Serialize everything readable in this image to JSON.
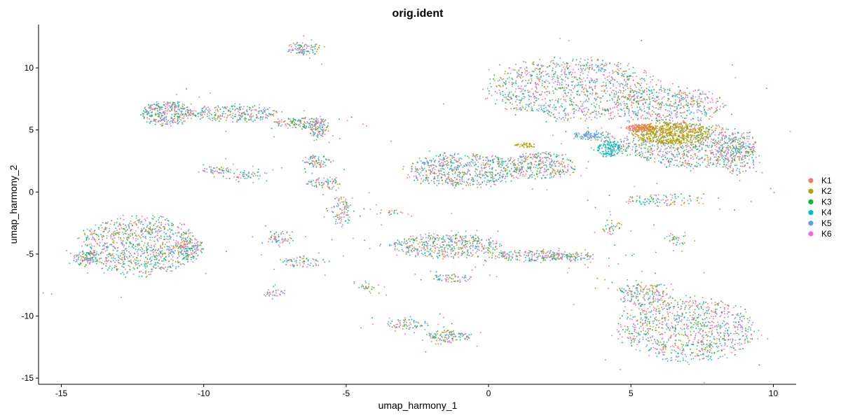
{
  "chart_data": {
    "type": "scatter",
    "title": "orig.ident",
    "xlabel": "umap_harmony_1",
    "ylabel": "umap_harmony_2",
    "xlim": [
      -15.8,
      10.8
    ],
    "ylim": [
      -15.5,
      13.5
    ],
    "x_ticks": [
      -15,
      -10,
      -5,
      0,
      5,
      10
    ],
    "y_ticks": [
      -15,
      -10,
      -5,
      0,
      5,
      10
    ],
    "x_tick_labels": [
      "-15",
      "-10",
      "-5",
      "0",
      "5",
      "10"
    ],
    "y_tick_labels": [
      "-15",
      "-10",
      "-5",
      "0",
      "5",
      "10"
    ],
    "grid": false,
    "legend_position": "right",
    "series": [
      {
        "name": "K1",
        "color": "#F8766D"
      },
      {
        "name": "K2",
        "color": "#B79F00"
      },
      {
        "name": "K3",
        "color": "#00BA38"
      },
      {
        "name": "K4",
        "color": "#00BFC4"
      },
      {
        "name": "K5",
        "color": "#619CFF"
      },
      {
        "name": "K6",
        "color": "#F564E3"
      }
    ],
    "clusters": [
      {
        "cx": -12.3,
        "cy": -4.3,
        "rx": 2.1,
        "ry": 2.4,
        "density": 900
      },
      {
        "cx": -14.2,
        "cy": -5.3,
        "rx": 0.45,
        "ry": 0.6,
        "density": 90
      },
      {
        "cx": -10.5,
        "cy": -4.6,
        "rx": 0.5,
        "ry": 0.9,
        "density": 110
      },
      {
        "cx": -11.3,
        "cy": 6.4,
        "rx": 0.9,
        "ry": 1.0,
        "density": 320
      },
      {
        "cx": -9.0,
        "cy": 6.4,
        "rx": 1.5,
        "ry": 0.7,
        "density": 240
      },
      {
        "cx": -6.6,
        "cy": 5.6,
        "rx": 1.0,
        "ry": 0.45,
        "density": 140
      },
      {
        "cx": -6.0,
        "cy": 5.1,
        "rx": 0.35,
        "ry": 0.7,
        "density": 80
      },
      {
        "cx": -6.5,
        "cy": 11.6,
        "rx": 0.6,
        "ry": 0.55,
        "density": 90
      },
      {
        "cx": -9.5,
        "cy": 1.8,
        "rx": 0.6,
        "ry": 0.3,
        "density": 40
      },
      {
        "cx": -8.5,
        "cy": 1.4,
        "rx": 0.5,
        "ry": 0.3,
        "density": 30
      },
      {
        "cx": -6.0,
        "cy": 2.5,
        "rx": 0.5,
        "ry": 0.5,
        "density": 60
      },
      {
        "cx": -5.8,
        "cy": 0.8,
        "rx": 0.6,
        "ry": 0.5,
        "density": 60
      },
      {
        "cx": -5.2,
        "cy": -1.5,
        "rx": 0.35,
        "ry": 1.2,
        "density": 80
      },
      {
        "cx": -7.3,
        "cy": -3.6,
        "rx": 0.4,
        "ry": 0.5,
        "density": 40
      },
      {
        "cx": -6.6,
        "cy": -5.6,
        "rx": 0.8,
        "ry": 0.45,
        "density": 60
      },
      {
        "cx": -7.5,
        "cy": -8.1,
        "rx": 0.4,
        "ry": 0.3,
        "density": 25
      },
      {
        "cx": -1.5,
        "cy": -4.3,
        "rx": 1.9,
        "ry": 1.0,
        "density": 450
      },
      {
        "cx": 1.5,
        "cy": -5.1,
        "rx": 1.4,
        "ry": 0.45,
        "density": 180
      },
      {
        "cx": 2.8,
        "cy": -5.2,
        "rx": 0.9,
        "ry": 0.35,
        "density": 80
      },
      {
        "cx": -1.3,
        "cy": -6.9,
        "rx": 0.7,
        "ry": 0.35,
        "density": 50
      },
      {
        "cx": -1.4,
        "cy": -11.6,
        "rx": 0.8,
        "ry": 0.5,
        "density": 110
      },
      {
        "cx": -2.9,
        "cy": -10.6,
        "rx": 0.8,
        "ry": 0.4,
        "density": 60
      },
      {
        "cx": -4.3,
        "cy": -7.6,
        "rx": 0.3,
        "ry": 0.2,
        "density": 15
      },
      {
        "cx": -3.5,
        "cy": -1.6,
        "rx": 0.5,
        "ry": 0.25,
        "density": 15
      },
      {
        "cx": -0.9,
        "cy": 1.8,
        "rx": 2.1,
        "ry": 1.4,
        "density": 600
      },
      {
        "cx": 1.9,
        "cy": 2.2,
        "rx": 1.2,
        "ry": 1.1,
        "density": 300
      },
      {
        "cx": 3.0,
        "cy": 8.3,
        "rx": 3.0,
        "ry": 2.5,
        "density": 1000
      },
      {
        "cx": 6.3,
        "cy": 7.0,
        "rx": 2.0,
        "ry": 1.5,
        "density": 450
      },
      {
        "cx": 7.1,
        "cy": 3.8,
        "rx": 2.3,
        "ry": 1.8,
        "density": 800
      },
      {
        "cx": 8.7,
        "cy": 3.0,
        "rx": 0.8,
        "ry": 1.6,
        "density": 180
      },
      {
        "cx": 4.4,
        "cy": 3.8,
        "rx": 0.6,
        "ry": 0.7,
        "density": 70
      },
      {
        "cx": 3.6,
        "cy": 4.6,
        "rx": 0.7,
        "ry": 0.4,
        "density": 50
      },
      {
        "cx": 6.2,
        "cy": -0.6,
        "rx": 1.6,
        "ry": 0.5,
        "density": 100
      },
      {
        "cx": 7.0,
        "cy": -11.0,
        "rx": 2.4,
        "ry": 2.6,
        "density": 900
      },
      {
        "cx": 5.5,
        "cy": -8.2,
        "rx": 1.0,
        "ry": 1.0,
        "density": 180
      },
      {
        "cx": 6.6,
        "cy": -3.8,
        "rx": 0.4,
        "ry": 0.6,
        "density": 25
      },
      {
        "cx": 4.3,
        "cy": -2.8,
        "rx": 0.4,
        "ry": 0.6,
        "density": 25
      }
    ],
    "hotspots": [
      {
        "series": "K1",
        "cx": 5.3,
        "cy": 5.2,
        "rx": 0.5,
        "ry": 0.3,
        "density": 160
      },
      {
        "series": "K2",
        "cx": 6.4,
        "cy": 4.8,
        "rx": 1.4,
        "ry": 0.9,
        "density": 520
      },
      {
        "series": "K2",
        "cx": 1.3,
        "cy": 3.8,
        "rx": 0.4,
        "ry": 0.2,
        "density": 40
      },
      {
        "series": "K4",
        "cx": 4.2,
        "cy": 3.5,
        "rx": 0.4,
        "ry": 0.7,
        "density": 120
      },
      {
        "series": "K5",
        "cx": 3.6,
        "cy": 4.6,
        "rx": 0.4,
        "ry": 0.25,
        "density": 60
      }
    ]
  }
}
